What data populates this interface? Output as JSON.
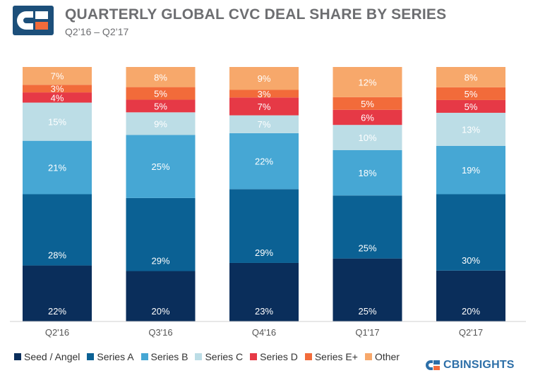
{
  "header": {
    "title": "QUARTERLY GLOBAL CVC DEAL SHARE BY SERIES",
    "subtitle": "Q2’16 – Q2’17",
    "logo_icon": "cb-insights-logo-icon"
  },
  "brand": {
    "name": "CBINSIGHTS",
    "color": "#2d6fa8"
  },
  "chart_data": {
    "type": "bar",
    "stacked": true,
    "title": "QUARTERLY GLOBAL CVC DEAL SHARE BY SERIES",
    "subtitle": "Q2’16 – Q2’17",
    "xlabel": "",
    "ylabel": "",
    "ylim": [
      0,
      100
    ],
    "grid": false,
    "legend_position": "bottom",
    "value_suffix": "%",
    "categories": [
      "Q2'16",
      "Q3'16",
      "Q4'16",
      "Q1'17",
      "Q2'17"
    ],
    "series": [
      {
        "name": "Seed / Angel",
        "color": "#0a2e5b",
        "values": [
          22,
          20,
          23,
          25,
          20
        ]
      },
      {
        "name": "Series A",
        "color": "#0b6194",
        "values": [
          28,
          29,
          29,
          25,
          30
        ]
      },
      {
        "name": "Series B",
        "color": "#46a7d4",
        "values": [
          21,
          25,
          22,
          18,
          19
        ]
      },
      {
        "name": "Series C",
        "color": "#bcdde6",
        "values": [
          15,
          9,
          7,
          10,
          13
        ]
      },
      {
        "name": "Series D",
        "color": "#e63946",
        "values": [
          4,
          5,
          7,
          6,
          5
        ]
      },
      {
        "name": "Series E+",
        "color": "#f26b3a",
        "values": [
          3,
          5,
          3,
          5,
          5
        ]
      },
      {
        "name": "Other",
        "color": "#f7a86b",
        "values": [
          7,
          8,
          9,
          12,
          8
        ]
      }
    ]
  }
}
